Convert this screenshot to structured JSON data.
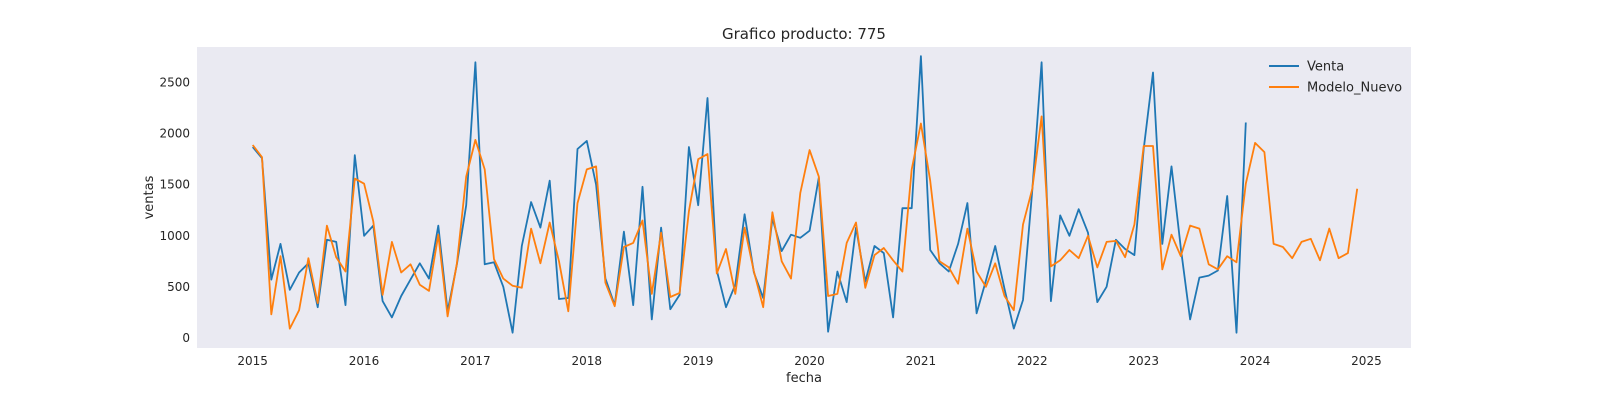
{
  "chart_data": {
    "type": "line",
    "title": "Grafico producto: 775",
    "xlabel": "fecha",
    "ylabel": "ventas",
    "xlim": [
      2014.5,
      2025.4
    ],
    "ylim": [
      -100,
      2850
    ],
    "x_ticks": [
      2015,
      2016,
      2017,
      2018,
      2019,
      2020,
      2021,
      2022,
      2023,
      2024,
      2025
    ],
    "y_ticks": [
      0,
      500,
      1000,
      1500,
      2000,
      2500
    ],
    "grid": false,
    "legend": "top-right",
    "background": "#eaeaf2",
    "series": [
      {
        "name": "Venta",
        "color": "#1f77b4",
        "x_start": 2015.0,
        "step_years": 0.0833333,
        "values": [
          1870,
          1760,
          570,
          920,
          470,
          640,
          730,
          300,
          960,
          940,
          320,
          1790,
          1000,
          1100,
          360,
          200,
          410,
          570,
          730,
          580,
          1100,
          260,
          720,
          1300,
          2700,
          720,
          740,
          500,
          50,
          900,
          1330,
          1080,
          1540,
          380,
          390,
          1850,
          1930,
          1500,
          580,
          320,
          1040,
          320,
          1480,
          180,
          1080,
          280,
          420,
          1870,
          1300,
          2350,
          660,
          300,
          520,
          1210,
          640,
          390,
          1170,
          850,
          1010,
          980,
          1050,
          1570,
          60,
          650,
          350,
          1080,
          550,
          900,
          830,
          200,
          1270,
          1270,
          2760,
          860,
          730,
          650,
          920,
          1320,
          240,
          560,
          900,
          480,
          90,
          370,
          1450,
          2700,
          360,
          1200,
          1000,
          1260,
          1030,
          350,
          500,
          960,
          870,
          810,
          1850,
          2600,
          920,
          1680,
          880,
          180,
          590,
          610,
          660,
          1390,
          50,
          2110
        ]
      },
      {
        "name": "Modelo_Nuevo",
        "color": "#ff7f0e",
        "x_start": 2015.0,
        "step_years": 0.0833333,
        "values": [
          1890,
          1770,
          230,
          800,
          90,
          270,
          780,
          340,
          1100,
          790,
          650,
          1560,
          1510,
          1140,
          420,
          940,
          640,
          720,
          520,
          460,
          1010,
          210,
          730,
          1580,
          1940,
          1650,
          770,
          580,
          510,
          490,
          1070,
          730,
          1130,
          750,
          260,
          1320,
          1650,
          1680,
          540,
          310,
          890,
          930,
          1150,
          430,
          1030,
          400,
          440,
          1240,
          1750,
          1800,
          630,
          870,
          430,
          1080,
          650,
          300,
          1230,
          750,
          580,
          1420,
          1840,
          1580,
          410,
          430,
          930,
          1130,
          490,
          810,
          880,
          760,
          650,
          1650,
          2100,
          1540,
          750,
          690,
          530,
          1070,
          650,
          500,
          730,
          410,
          270,
          1110,
          1460,
          2170,
          700,
          760,
          860,
          780,
          1000,
          690,
          940,
          950,
          790,
          1110,
          1880,
          1880,
          670,
          1010,
          800,
          1100,
          1070,
          720,
          670,
          800,
          740,
          1510,
          1910,
          1820,
          920,
          890,
          780,
          940,
          970,
          760,
          1070,
          780,
          830,
          1460
        ]
      }
    ]
  }
}
